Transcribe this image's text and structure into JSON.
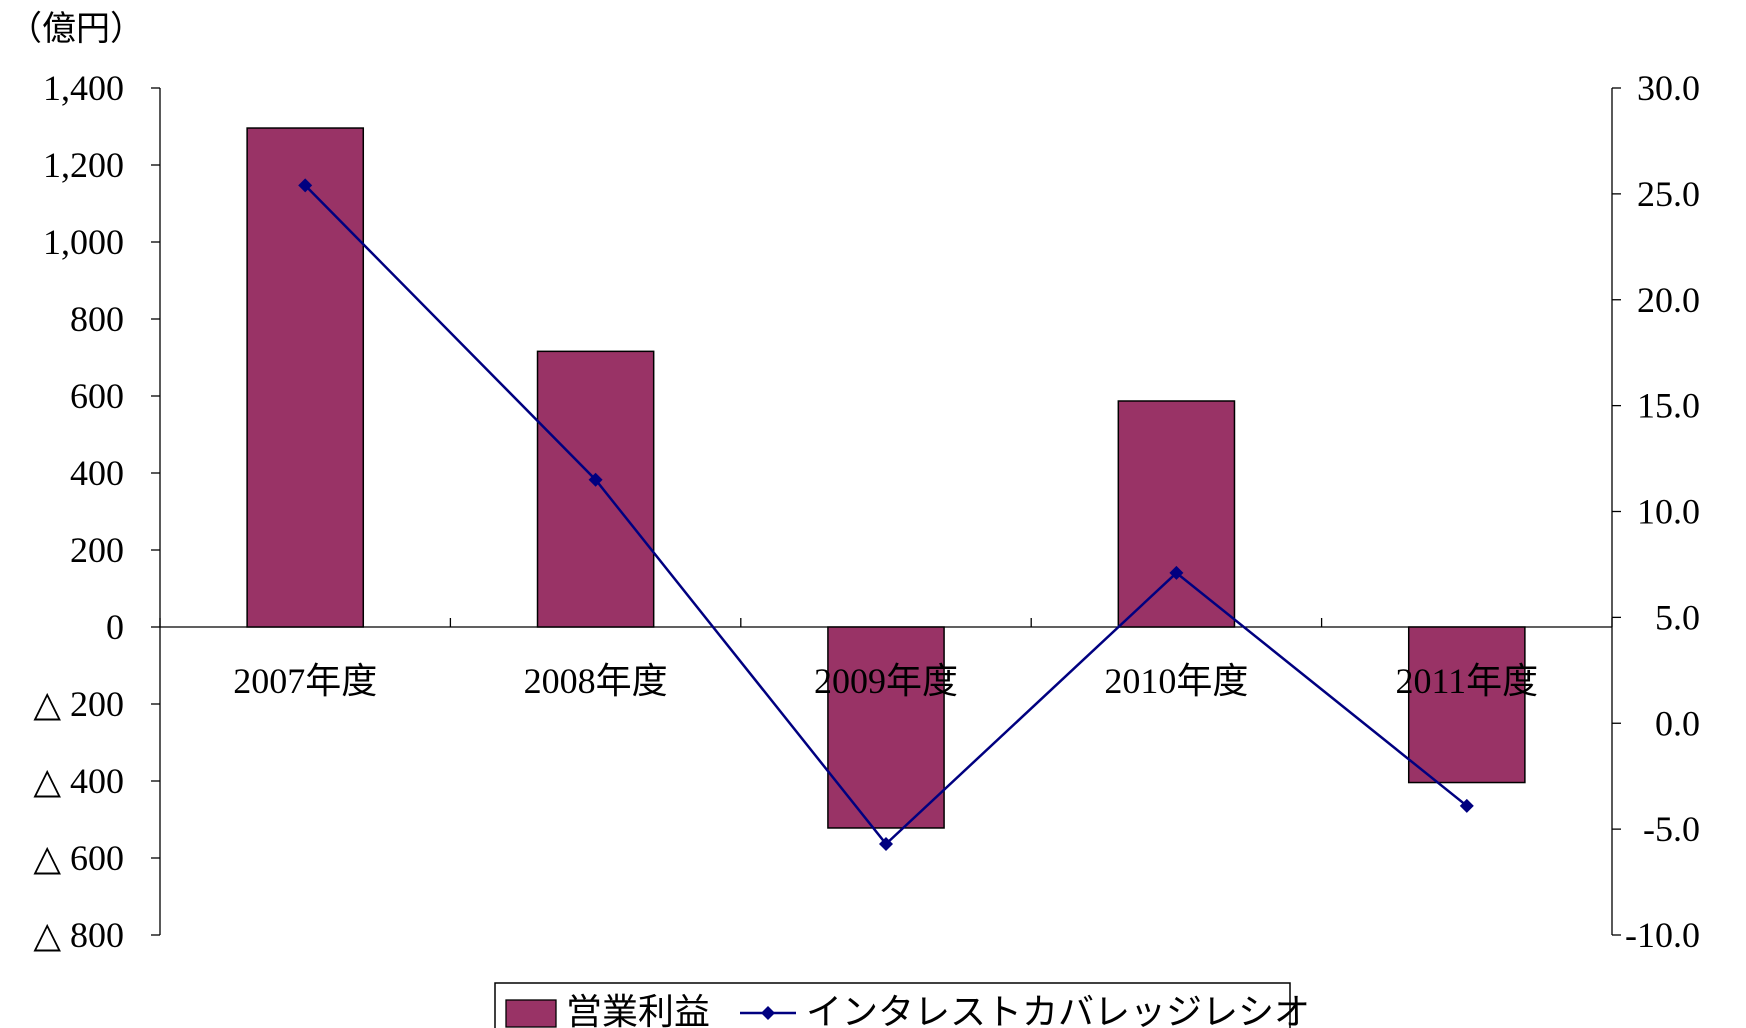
{
  "chart_data": {
    "type": "bar",
    "y_unit_label": "（億円）",
    "categories": [
      "2007年度",
      "2008年度",
      "2009年度",
      "2010年度",
      "2011年度"
    ],
    "series": [
      {
        "name": "営業利益",
        "type": "bar",
        "axis": "left",
        "color": "#993366",
        "values": [
          1296,
          716,
          -522,
          587,
          -404
        ]
      },
      {
        "name": "インタレストカバレッジレシオ",
        "type": "line",
        "axis": "right",
        "color": "#000080",
        "values": [
          25.4,
          11.5,
          -5.7,
          7.1,
          -3.9
        ]
      }
    ],
    "y_left": {
      "ylim": [
        -800,
        1400
      ],
      "ticks": [
        1400,
        1200,
        1000,
        800,
        600,
        400,
        200,
        0,
        -200,
        -400,
        -600,
        -800
      ],
      "tick_labels": [
        "1,400",
        "1,200",
        "1,000",
        "800",
        "600",
        "400",
        "200",
        "0",
        "△ 200",
        "△ 400",
        "△ 600",
        "△ 800"
      ]
    },
    "y_right": {
      "ylim": [
        -10,
        30
      ],
      "ticks": [
        30,
        25,
        20,
        15,
        10,
        5,
        0,
        -5,
        -10
      ],
      "tick_labels": [
        "30.0",
        "25.0",
        "20.0",
        "15.0",
        "10.0",
        "5.0",
        "0.0",
        "-5.0",
        "-10.0"
      ]
    },
    "grid": false,
    "legend_position": "bottom-center"
  }
}
